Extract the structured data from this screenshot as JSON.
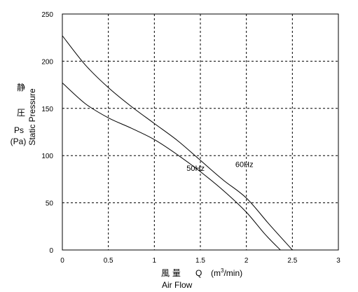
{
  "chart_data": {
    "type": "line",
    "xlim": [
      0,
      3
    ],
    "ylim": [
      0,
      250
    ],
    "x_ticks": [
      "0",
      "0.5",
      "1",
      "1.5",
      "2",
      "2.5",
      "3"
    ],
    "y_ticks": [
      "0",
      "50",
      "100",
      "150",
      "200",
      "250"
    ],
    "grid": "dashed",
    "xlabel": {
      "cjk": "風 量",
      "symbol": "Q",
      "unit_open": "(m",
      "unit_sup": "3",
      "unit_close": "/min)",
      "english": "Air Flow"
    },
    "ylabel": {
      "cjk_1": "静",
      "cjk_2": "圧",
      "symbol": "Ps",
      "unit": "(Pa)",
      "english": "Static Pressure"
    },
    "series": [
      {
        "name": "60Hz",
        "x": [
          0,
          0.25,
          0.5,
          0.75,
          1.0,
          1.25,
          1.5,
          1.75,
          2.0,
          2.25,
          2.5
        ],
        "y": [
          227,
          196,
          172,
          152,
          134,
          116,
          95,
          74,
          55,
          27,
          0
        ]
      },
      {
        "name": "50Hz",
        "x": [
          0,
          0.25,
          0.5,
          0.75,
          1.0,
          1.25,
          1.5,
          1.75,
          2.0,
          2.2,
          2.37
        ],
        "y": [
          177,
          155,
          140,
          129,
          117,
          101,
          83,
          63,
          40,
          17,
          0
        ]
      }
    ],
    "annotations": [
      {
        "text": "50Hz",
        "x": 1.35,
        "y": 84
      },
      {
        "text": "60Hz",
        "x": 1.88,
        "y": 88
      }
    ]
  }
}
